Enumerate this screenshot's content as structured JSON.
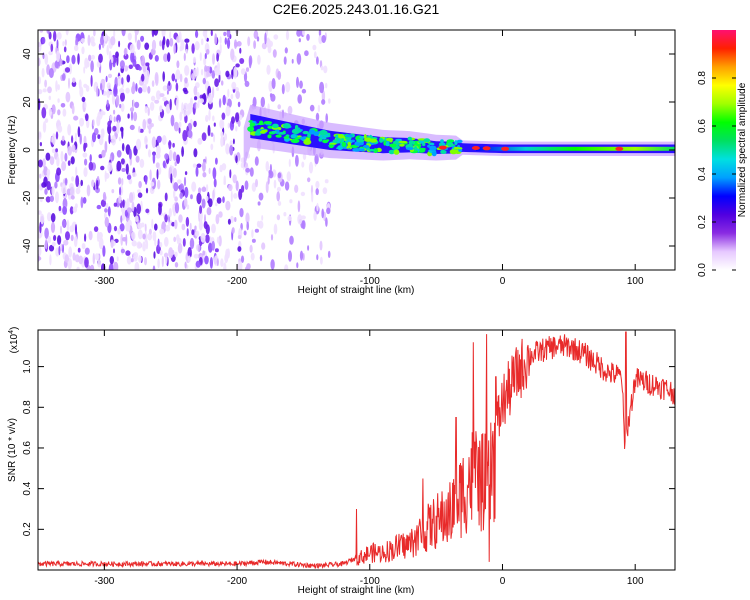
{
  "title": "C2E6.2025.243.01.16.G21",
  "chart_data": [
    {
      "type": "heatmap",
      "title": "C2E6.2025.243.01.16.G21",
      "xlabel": "Height of straight line (km)",
      "ylabel": "Frequency (Hz)",
      "xlim": [
        -350,
        130
      ],
      "ylim": [
        -50,
        50
      ],
      "xticks": [
        -300,
        -200,
        -100,
        0,
        100
      ],
      "yticks": [
        -40,
        -20,
        0,
        20,
        40
      ],
      "noise_region_x": [
        -350,
        -130
      ],
      "signal_center_hz": [
        {
          "x": -190,
          "y": 10
        },
        {
          "x": -170,
          "y": 8
        },
        {
          "x": -150,
          "y": 6
        },
        {
          "x": -130,
          "y": 4
        },
        {
          "x": -110,
          "y": 3
        },
        {
          "x": -90,
          "y": 2
        },
        {
          "x": -70,
          "y": 2
        },
        {
          "x": -50,
          "y": 1
        },
        {
          "x": -30,
          "y": 1
        },
        {
          "x": 0,
          "y": 0.5
        },
        {
          "x": 50,
          "y": 0.5
        },
        {
          "x": 100,
          "y": 0.5
        },
        {
          "x": 130,
          "y": 0.5
        }
      ],
      "colorbar": {
        "label": "Normalized spectral amplitude",
        "range": [
          0,
          1
        ],
        "ticks": [
          "0.0",
          "0.2",
          "0.4",
          "0.6",
          "0.8"
        ],
        "colors": [
          "#ffffff",
          "#e6c8ff",
          "#8a2be2",
          "#5000e0",
          "#0000ff",
          "#00a0ff",
          "#00e0e0",
          "#00e060",
          "#00ff00",
          "#a0ff00",
          "#ffff00",
          "#ffa000",
          "#ff2000",
          "#ff1070"
        ]
      }
    },
    {
      "type": "line",
      "xlabel": "Height of straight line (km)",
      "ylabel": "SNR (10 * v/v)",
      "multiplier": "(x10",
      "multiplier_exp": "4",
      "multiplier_close": ")",
      "xlim": [
        -350,
        130
      ],
      "ylim": [
        0,
        1.18
      ],
      "xticks": [
        -300,
        -200,
        -100,
        0,
        100
      ],
      "yticks": [
        "0.2",
        "0.4",
        "0.6",
        "0.8",
        "1.0"
      ],
      "ytick_values": [
        0.2,
        0.4,
        0.6,
        0.8,
        1.0
      ],
      "line_color": "#e82a2a",
      "x": [
        -350,
        -300,
        -250,
        -200,
        -180,
        -160,
        -140,
        -120,
        -110,
        -100,
        -90,
        -80,
        -70,
        -60,
        -50,
        -40,
        -30,
        -25,
        -20,
        -15,
        -10,
        -5,
        0,
        10,
        20,
        30,
        40,
        50,
        60,
        70,
        80,
        90,
        92,
        100,
        110,
        120,
        130
      ],
      "y": [
        0.03,
        0.03,
        0.03,
        0.03,
        0.04,
        0.03,
        0.02,
        0.03,
        0.06,
        0.1,
        0.1,
        0.13,
        0.15,
        0.22,
        0.28,
        0.32,
        0.45,
        0.52,
        0.55,
        0.5,
        0.5,
        0.68,
        0.82,
        0.95,
        1.05,
        1.08,
        1.1,
        1.1,
        1.07,
        1.02,
        0.97,
        0.95,
        0.6,
        0.94,
        0.92,
        0.9,
        0.87
      ],
      "spikes": [
        {
          "x": -110,
          "y": 0.3
        },
        {
          "x": -60,
          "y": 0.45
        },
        {
          "x": -35,
          "y": 0.75
        },
        {
          "x": -22,
          "y": 1.12
        },
        {
          "x": -12,
          "y": 1.16
        },
        {
          "x": -10,
          "y": 0.04
        },
        {
          "x": -5,
          "y": 0.95
        },
        {
          "x": 93,
          "y": 1.17
        }
      ]
    }
  ]
}
